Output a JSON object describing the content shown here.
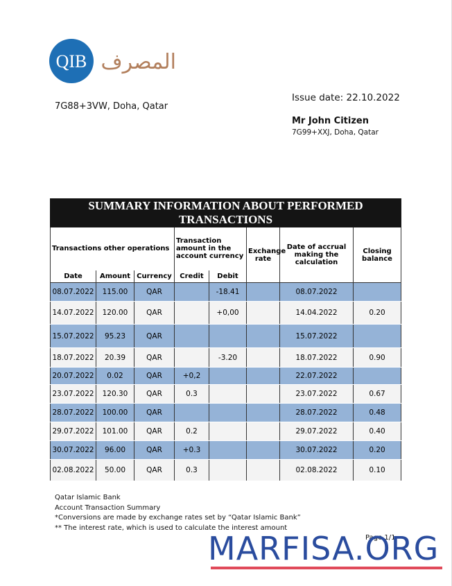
{
  "logo": {
    "mark": "QIB",
    "name": "المصرف"
  },
  "bank_address": "7G88+3VW, Doha, Qatar",
  "issue_date": "Issue date: 22.10.2022",
  "recipient": {
    "name": "Mr John Citizen",
    "address": "7G99+XXJ, Doha, Qatar"
  },
  "table": {
    "title": "SUMMARY INFORMATION ABOUT PERFORMED TRANSACTIONS",
    "group_headers": {
      "operations": "Transactions other operations",
      "amount": "Transaction amount in the account currency",
      "exchange": "Exchange rate",
      "accrual": "Date of accrual making the calculation",
      "closing": "Closing balance"
    },
    "column_headers": {
      "date": "Date",
      "amount": "Amount",
      "currency": "Currency",
      "credit": "Credit",
      "debit": "Debit"
    },
    "rows": [
      {
        "date": "08.07.2022",
        "amount": "115.00",
        "currency": "QAR",
        "debit": "-18.41",
        "accrual": "08.07.2022"
      },
      {
        "date": "14.07.2022",
        "amount": "120.00",
        "currency": "QAR",
        "debit": "+0,00",
        "accrual": "14.04.2022",
        "closing": "0.20"
      },
      {
        "date": "15.07.2022",
        "amount": "95.23",
        "currency": "QAR",
        "accrual": "15.07.2022"
      },
      {
        "date": "18.07.2022",
        "amount": "20.39",
        "currency": "QAR",
        "debit": "-3.20",
        "accrual": "18.07.2022",
        "closing": "0.90"
      },
      {
        "date": "20.07.2022",
        "amount": "0.02",
        "currency": "QAR",
        "credit": "+0,2",
        "accrual": "22.07.2022"
      },
      {
        "date": "23.07.2022",
        "amount": "120.30",
        "currency": "QAR",
        "credit": "0.3",
        "accrual": "23.07.2022",
        "closing": "0.67"
      },
      {
        "date": "28.07.2022",
        "amount": "100.00",
        "currency": "QAR",
        "accrual": "28.07.2022",
        "closing": "0.48"
      },
      {
        "date": "29.07.2022",
        "amount": "101.00",
        "currency": "QAR",
        "credit": "0.2",
        "accrual": "29.07.2022",
        "closing": "0.40"
      },
      {
        "date": "30.07.2022",
        "amount": "96.00",
        "currency": "QAR",
        "credit": "+0.3",
        "accrual": "30.07.2022",
        "closing": "0.20"
      },
      {
        "date": "02.08.2022",
        "amount": "50.00",
        "currency": "QAR",
        "credit": "0.3",
        "accrual": "02.08.2022",
        "closing": "0.10"
      }
    ]
  },
  "footer": [
    "Qatar Islamic Bank",
    "Account Transaction Summary",
    "*Conversions are made by exchange rates set by “Qatar Islamic Bank”",
    "** The interest rate, which is used to calculate the interest amount"
  ],
  "page_number": "Page 1/1",
  "watermark": "MARFISA.ORG"
}
